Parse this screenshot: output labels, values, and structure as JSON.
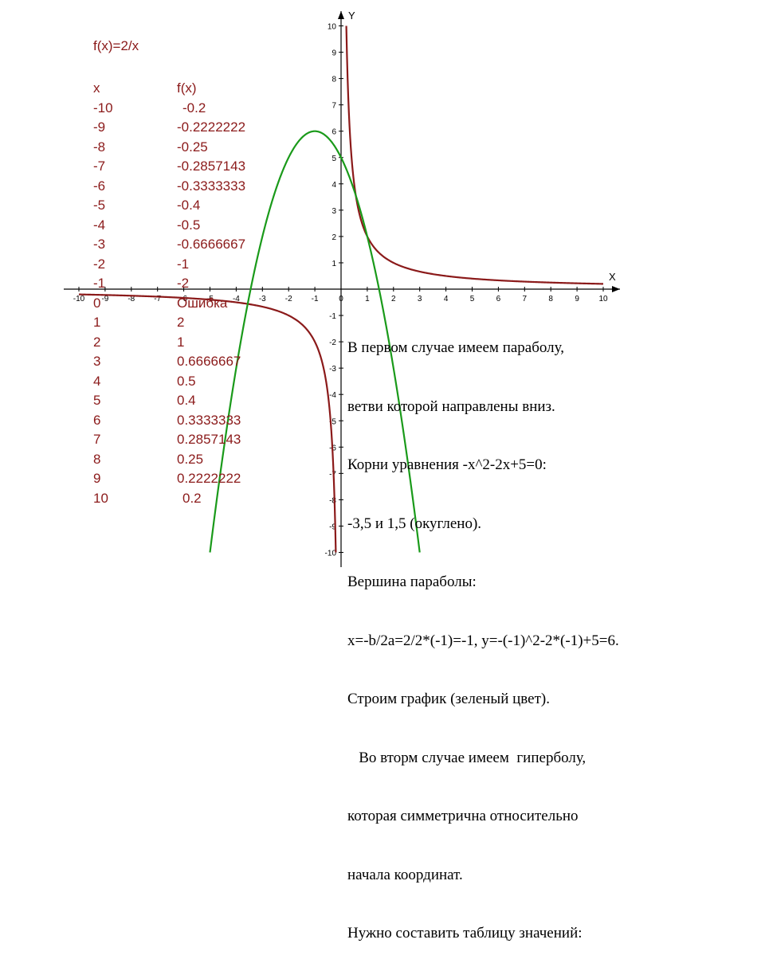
{
  "chart_data": {
    "type": "line",
    "function_label": "f(x)=2/x",
    "axis_labels": {
      "x": "X",
      "y": "Y"
    },
    "xlim": [
      -10,
      10
    ],
    "ylim": [
      -10,
      10
    ],
    "x_ticks": [
      "-10",
      "-9",
      "-8",
      "-7",
      "-6",
      "-5",
      "-4",
      "-3",
      "-2",
      "-1",
      "0",
      "1",
      "2",
      "3",
      "4",
      "5",
      "6",
      "7",
      "8",
      "9",
      "10"
    ],
    "y_ticks": [
      "-10",
      "-9",
      "-8",
      "-7",
      "-6",
      "-5",
      "-4",
      "-3",
      "-2",
      "-1",
      "1",
      "2",
      "3",
      "4",
      "5",
      "6",
      "7",
      "8",
      "9",
      "10"
    ],
    "series": [
      {
        "kind": "hyperbola",
        "color": "#8b1a1a",
        "formula_k": 2
      },
      {
        "kind": "parabola",
        "color": "#1a9a1a",
        "coef": [
          -1,
          -2,
          5
        ]
      }
    ],
    "table": {
      "headers": [
        "x",
        "f(x)"
      ],
      "rows": [
        [
          "-10",
          "-0.2"
        ],
        [
          "-9",
          "-0.2222222"
        ],
        [
          "-8",
          "-0.25"
        ],
        [
          "-7",
          "-0.2857143"
        ],
        [
          "-6",
          "-0.3333333"
        ],
        [
          "-5",
          "-0.4"
        ],
        [
          "-4",
          "-0.5"
        ],
        [
          "-3",
          "-0.6666667"
        ],
        [
          "-2",
          "-1"
        ],
        [
          "-1",
          "-2"
        ],
        [
          "0",
          "Ошибка"
        ],
        [
          "1",
          "2"
        ],
        [
          "2",
          "1"
        ],
        [
          "3",
          "0.6666667"
        ],
        [
          "4",
          "0.5"
        ],
        [
          "5",
          "0.4"
        ],
        [
          "6",
          "0.3333333"
        ],
        [
          "7",
          "0.2857143"
        ],
        [
          "8",
          "0.25"
        ],
        [
          "9",
          "0.2222222"
        ],
        [
          "10",
          "0.2"
        ]
      ]
    }
  },
  "description_lines": [
    "В первом случае имеем параболу,",
    "ветви которой направлены вниз.",
    "Корни уравнения -x^2-2x+5=0:",
    "-3,5 и 1,5 (окуглено).",
    "Вершина параболы:",
    "x=-b/2a=2/2*(-1)=-1, y=-(-1)^2-2*(-1)+5=6.",
    "Строим график (зеленый цвет).",
    "   Во вторм случае имеем  гиперболу,",
    "которая симметрична относительно",
    "начала координат.",
    "Нужно составить таблицу значений:"
  ]
}
